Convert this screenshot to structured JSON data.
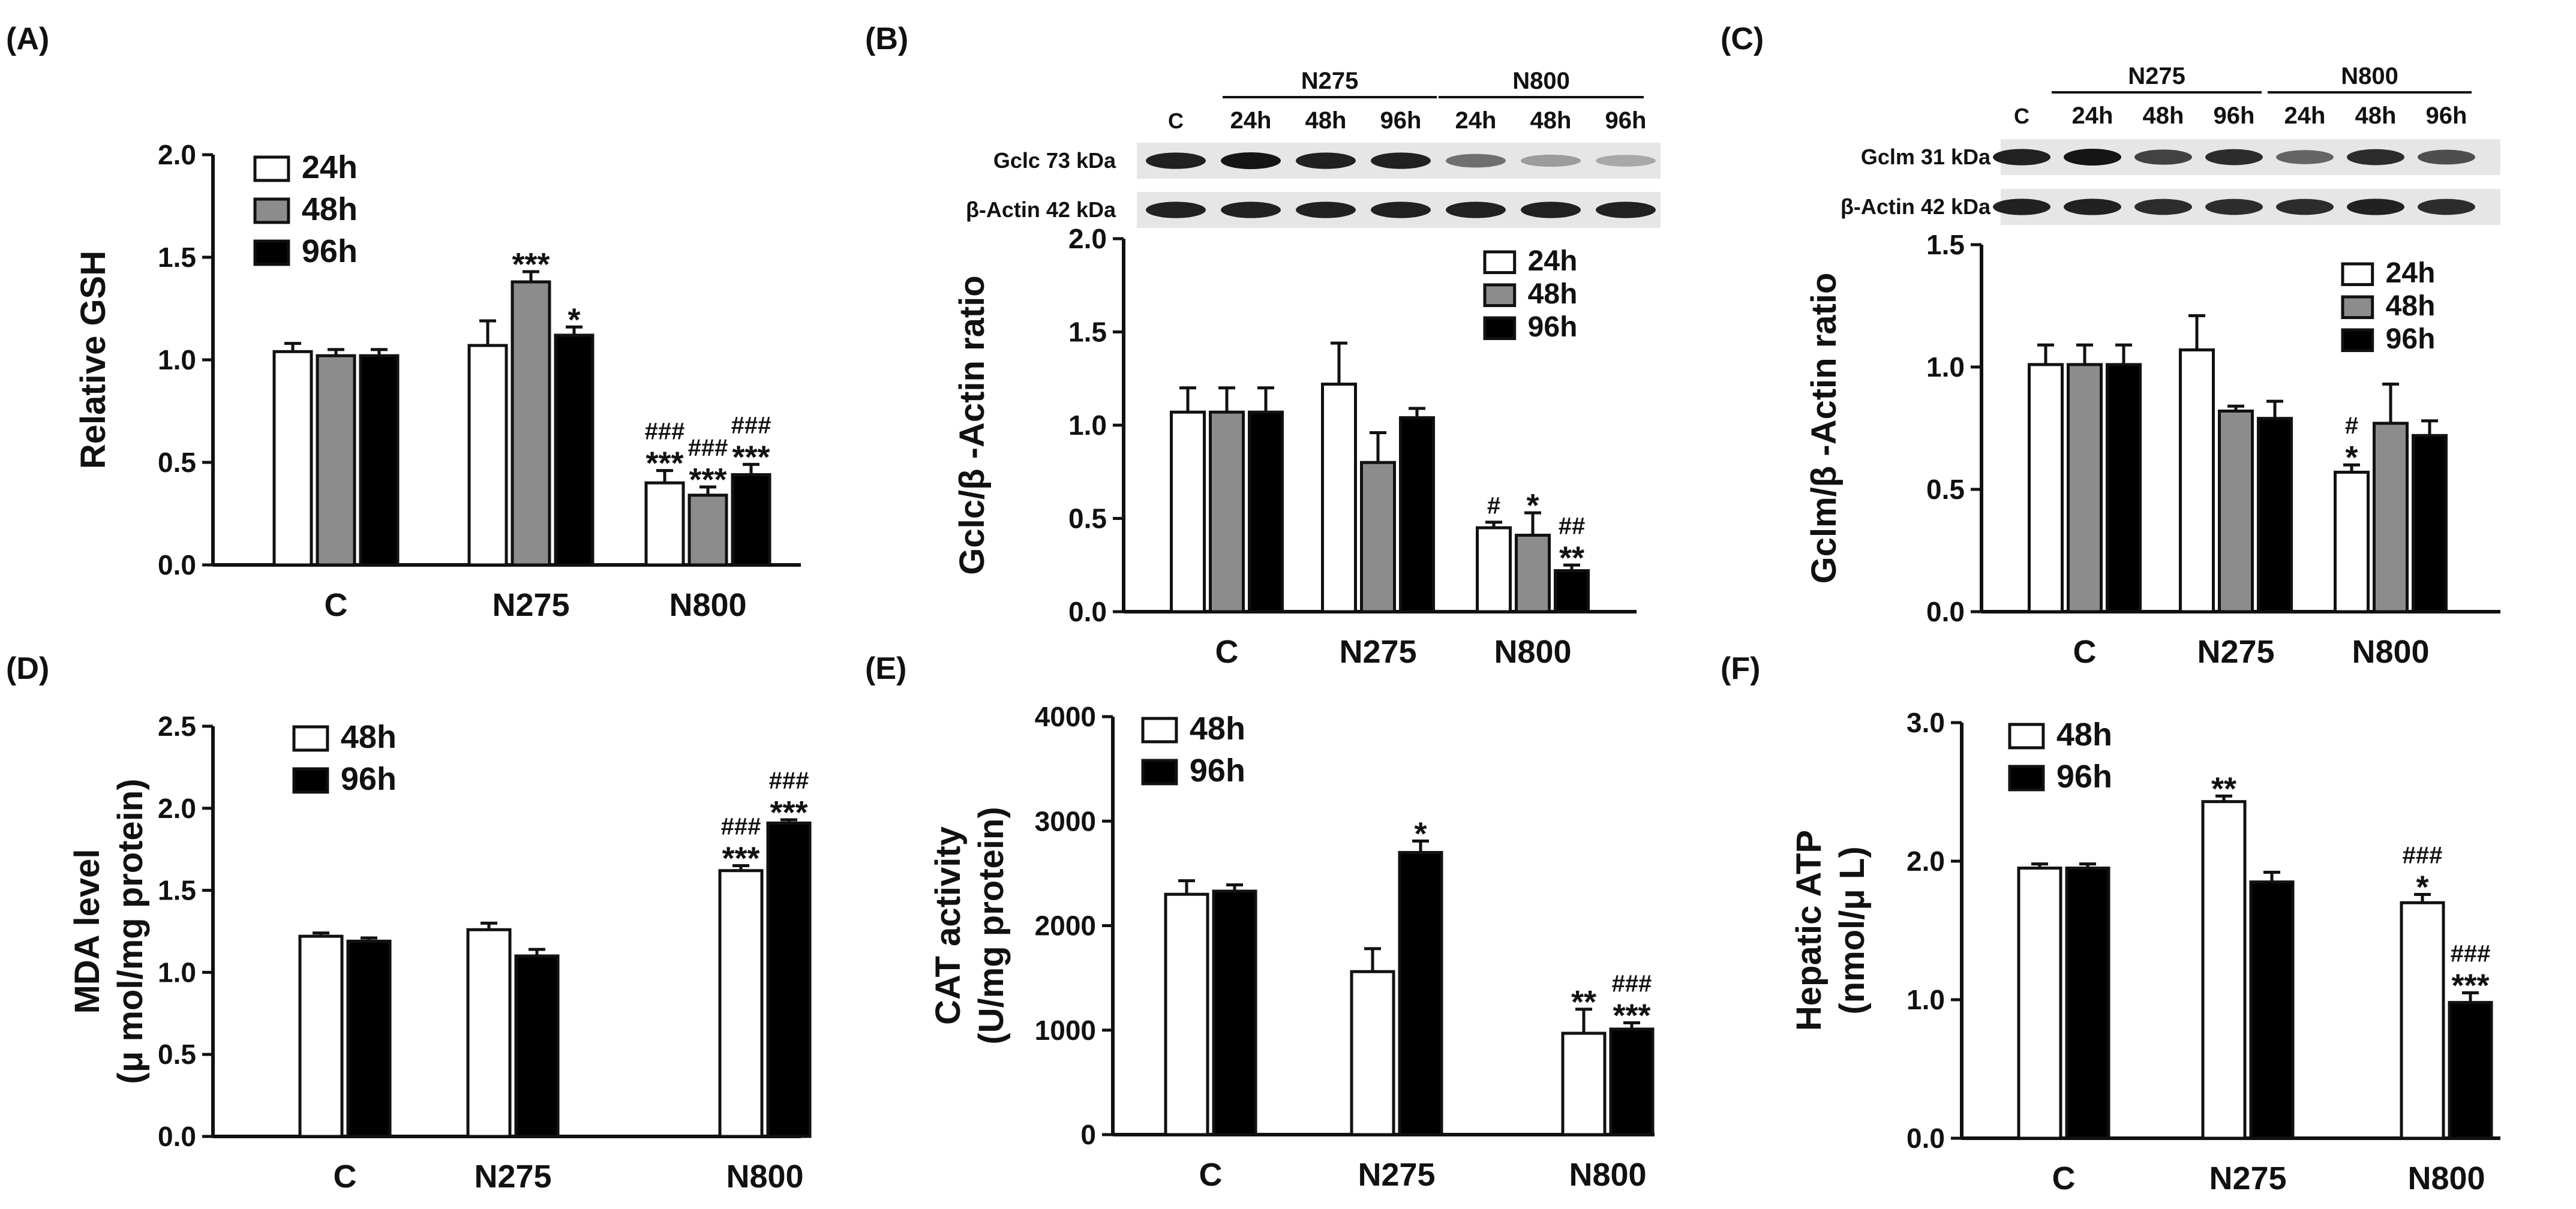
{
  "colors": {
    "c24h": "#ffffff",
    "c48h_grey": "#8c8c8c",
    "c96h": "#000000",
    "c48h_white": "#ffffff",
    "axis": "#111111"
  },
  "chart_data": [
    {
      "id": "A",
      "panel_label": "(A)",
      "type": "bar",
      "ylabel": "Relative GSH",
      "ylabel2": "",
      "categories": [
        "C",
        "N275",
        "N800"
      ],
      "ylim": [
        0,
        2.0
      ],
      "yticks": [
        "0.0",
        "0.5",
        "1.0",
        "1.5",
        "2.0"
      ],
      "ytick_values": [
        0,
        0.5,
        1.0,
        1.5,
        2.0
      ],
      "legend": [
        {
          "name": "24h",
          "color": "#ffffff"
        },
        {
          "name": "48h",
          "color": "#8c8c8c"
        },
        {
          "name": "96h",
          "color": "#000000"
        }
      ],
      "series": [
        {
          "name": "24h",
          "color": "#ffffff",
          "values": [
            1.04,
            1.07,
            0.4
          ],
          "errors": [
            0.04,
            0.12,
            0.06
          ],
          "labels": [
            [],
            [],
            [
              "###",
              "***"
            ]
          ]
        },
        {
          "name": "48h",
          "color": "#8c8c8c",
          "values": [
            1.02,
            1.38,
            0.34
          ],
          "errors": [
            0.03,
            0.05,
            0.04
          ],
          "labels": [
            [],
            [
              "***"
            ],
            [
              "###",
              "***"
            ]
          ]
        },
        {
          "name": "96h",
          "color": "#000000",
          "values": [
            1.02,
            1.12,
            0.44
          ],
          "errors": [
            0.03,
            0.04,
            0.05
          ],
          "labels": [
            [],
            [
              "*"
            ],
            [
              "###",
              "***"
            ]
          ]
        }
      ]
    },
    {
      "id": "B",
      "panel_label": "(B)",
      "type": "bar",
      "ylabel": "Gclc/β -Actin ratio",
      "ylabel2": "",
      "categories": [
        "C",
        "N275",
        "N800"
      ],
      "ylim": [
        0,
        2.0
      ],
      "yticks": [
        "0.0",
        "0.5",
        "1.0",
        "1.5",
        "2.0"
      ],
      "ytick_values": [
        0,
        0.5,
        1.0,
        1.5,
        2.0
      ],
      "legend": [
        {
          "name": "24h",
          "color": "#ffffff"
        },
        {
          "name": "48h",
          "color": "#8c8c8c"
        },
        {
          "name": "96h",
          "color": "#000000"
        }
      ],
      "series": [
        {
          "name": "24h",
          "color": "#ffffff",
          "values": [
            1.07,
            1.22,
            0.45
          ],
          "errors": [
            0.13,
            0.22,
            0.03
          ],
          "labels": [
            [],
            [],
            [
              "#"
            ]
          ]
        },
        {
          "name": "48h",
          "color": "#8c8c8c",
          "values": [
            1.07,
            0.8,
            0.41
          ],
          "errors": [
            0.13,
            0.16,
            0.12
          ],
          "labels": [
            [],
            [],
            [
              "*"
            ]
          ]
        },
        {
          "name": "96h",
          "color": "#000000",
          "values": [
            1.07,
            1.04,
            0.22
          ],
          "errors": [
            0.13,
            0.05,
            0.03
          ],
          "labels": [
            [],
            [],
            [
              "##",
              "**"
            ]
          ]
        }
      ],
      "blot": {
        "group_labels": [
          "N275",
          "N800"
        ],
        "lanes": [
          "C",
          "24h",
          "48h",
          "96h",
          "24h",
          "48h",
          "96h"
        ],
        "rows": [
          {
            "label": "Gclc 73 kDa",
            "intensity": [
              0.9,
              0.95,
              0.9,
              0.9,
              0.55,
              0.35,
              0.3
            ]
          },
          {
            "label": "β-Actin 42 kDa",
            "intensity": [
              0.9,
              0.9,
              0.9,
              0.9,
              0.9,
              0.9,
              0.9
            ]
          }
        ]
      }
    },
    {
      "id": "C",
      "panel_label": "(C)",
      "type": "bar",
      "ylabel": "Gclm/β -Actin ratio",
      "ylabel2": "",
      "categories": [
        "C",
        "N275",
        "N800"
      ],
      "ylim": [
        0,
        1.5
      ],
      "yticks": [
        "0.0",
        "0.5",
        "1.0",
        "1.5"
      ],
      "ytick_values": [
        0,
        0.5,
        1.0,
        1.5
      ],
      "legend": [
        {
          "name": "24h",
          "color": "#ffffff"
        },
        {
          "name": "48h",
          "color": "#8c8c8c"
        },
        {
          "name": "96h",
          "color": "#000000"
        }
      ],
      "series": [
        {
          "name": "24h",
          "color": "#ffffff",
          "values": [
            1.01,
            1.07,
            0.57
          ],
          "errors": [
            0.08,
            0.14,
            0.03
          ],
          "labels": [
            [],
            [],
            [
              "#",
              "*"
            ]
          ]
        },
        {
          "name": "48h",
          "color": "#8c8c8c",
          "values": [
            1.01,
            0.82,
            0.77
          ],
          "errors": [
            0.08,
            0.02,
            0.16
          ],
          "labels": [
            [],
            [],
            []
          ]
        },
        {
          "name": "96h",
          "color": "#000000",
          "values": [
            1.01,
            0.79,
            0.72
          ],
          "errors": [
            0.08,
            0.07,
            0.06
          ],
          "labels": [
            [],
            [],
            []
          ]
        }
      ],
      "blot": {
        "group_labels": [
          "N275",
          "N800"
        ],
        "lanes": [
          "C",
          "24h",
          "48h",
          "96h",
          "24h",
          "48h",
          "96h"
        ],
        "rows": [
          {
            "label": "Gclm  31 kDa",
            "intensity": [
              0.9,
              0.95,
              0.75,
              0.85,
              0.6,
              0.85,
              0.7
            ]
          },
          {
            "label": "β-Actin  42 kDa",
            "intensity": [
              0.9,
              0.9,
              0.85,
              0.85,
              0.85,
              0.9,
              0.85
            ]
          }
        ]
      }
    },
    {
      "id": "D",
      "panel_label": "(D)",
      "type": "bar",
      "ylabel": "MDA level",
      "ylabel2": "(μ mol/mg protein)",
      "categories": [
        "C",
        "N275",
        "N800"
      ],
      "ylim": [
        0,
        2.5
      ],
      "yticks": [
        "0.0",
        "0.5",
        "1.0",
        "1.5",
        "2.0",
        "2.5"
      ],
      "ytick_values": [
        0,
        0.5,
        1.0,
        1.5,
        2.0,
        2.5
      ],
      "legend": [
        {
          "name": "48h",
          "color": "#ffffff"
        },
        {
          "name": "96h",
          "color": "#000000"
        }
      ],
      "series": [
        {
          "name": "48h",
          "color": "#ffffff",
          "values": [
            1.22,
            1.26,
            1.62
          ],
          "errors": [
            0.02,
            0.04,
            0.03
          ],
          "labels": [
            [],
            [],
            [
              "###",
              "***"
            ]
          ]
        },
        {
          "name": "96h",
          "color": "#000000",
          "values": [
            1.19,
            1.1,
            1.91
          ],
          "errors": [
            0.02,
            0.04,
            0.02
          ],
          "labels": [
            [],
            [],
            [
              "###",
              "***"
            ]
          ]
        }
      ]
    },
    {
      "id": "E",
      "panel_label": "(E)",
      "type": "bar",
      "ylabel": "CAT activity",
      "ylabel2": "(U/mg protein)",
      "categories": [
        "C",
        "N275",
        "N800"
      ],
      "ylim": [
        0,
        4000
      ],
      "yticks": [
        "0",
        "1000",
        "2000",
        "3000",
        "4000"
      ],
      "ytick_values": [
        0,
        1000,
        2000,
        3000,
        4000
      ],
      "legend": [
        {
          "name": "48h",
          "color": "#ffffff"
        },
        {
          "name": "96h",
          "color": "#000000"
        }
      ],
      "series": [
        {
          "name": "48h",
          "color": "#ffffff",
          "values": [
            2300,
            1560,
            970
          ],
          "errors": [
            130,
            220,
            230
          ],
          "labels": [
            [],
            [],
            [
              "**"
            ]
          ]
        },
        {
          "name": "96h",
          "color": "#000000",
          "values": [
            2330,
            2700,
            1010
          ],
          "errors": [
            60,
            110,
            60
          ],
          "labels": [
            [],
            [
              "*"
            ],
            [
              "###",
              "***"
            ]
          ]
        }
      ]
    },
    {
      "id": "F",
      "panel_label": "(F)",
      "type": "bar",
      "ylabel": "Hepatic ATP",
      "ylabel2": "(nmol/μ L)",
      "categories": [
        "C",
        "N275",
        "N800"
      ],
      "ylim": [
        0,
        3.0
      ],
      "yticks": [
        "0.0",
        "1.0",
        "2.0",
        "3.0"
      ],
      "ytick_values": [
        0,
        1.0,
        2.0,
        3.0
      ],
      "legend": [
        {
          "name": "48h",
          "color": "#ffffff"
        },
        {
          "name": "96h",
          "color": "#000000"
        }
      ],
      "series": [
        {
          "name": "48h",
          "color": "#ffffff",
          "values": [
            1.95,
            2.43,
            1.7
          ],
          "errors": [
            0.03,
            0.04,
            0.06
          ],
          "labels": [
            [],
            [
              "**"
            ],
            [
              "###",
              "*"
            ]
          ]
        },
        {
          "name": "96h",
          "color": "#000000",
          "values": [
            1.95,
            1.85,
            0.98
          ],
          "errors": [
            0.03,
            0.07,
            0.07
          ],
          "labels": [
            [],
            [],
            [
              "###",
              "***"
            ]
          ]
        }
      ]
    }
  ]
}
